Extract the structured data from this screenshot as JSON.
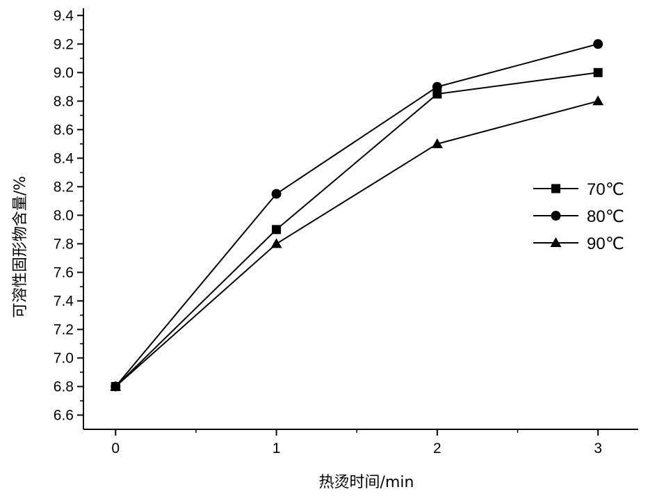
{
  "chart_data": {
    "type": "line",
    "title": "",
    "xlabel": "热烫时间/min",
    "ylabel": "可溶性固形物含量/%",
    "x": [
      0,
      1,
      2,
      3
    ],
    "xlim": [
      -0.2,
      3.25
    ],
    "ylim": [
      6.5,
      9.45
    ],
    "xticks": [
      0,
      1,
      2,
      3
    ],
    "xtick_labels": [
      "0",
      "1",
      "2",
      "3"
    ],
    "yticks": [
      6.6,
      6.8,
      7.0,
      7.2,
      7.4,
      7.6,
      7.8,
      8.0,
      8.2,
      8.4,
      8.6,
      8.8,
      9.0,
      9.2,
      9.4
    ],
    "ytick_labels": [
      "6.6",
      "6.8",
      "7.0",
      "7.2",
      "7.4",
      "7.6",
      "7.8",
      "8.0",
      "8.2",
      "8.4",
      "8.6",
      "8.8",
      "9.0",
      "9.2",
      "9.4"
    ],
    "grid": false,
    "legend_position": "right",
    "series": [
      {
        "name": "70℃",
        "marker": "square",
        "values": [
          6.8,
          7.9,
          8.85,
          9.0
        ]
      },
      {
        "name": "80℃",
        "marker": "circle",
        "values": [
          6.8,
          8.15,
          8.9,
          9.2
        ]
      },
      {
        "name": "90℃",
        "marker": "triangle",
        "values": [
          6.8,
          7.8,
          8.5,
          8.8
        ]
      }
    ],
    "colors": {
      "line": "#000000",
      "marker": "#000000",
      "background": "#ffffff"
    }
  }
}
